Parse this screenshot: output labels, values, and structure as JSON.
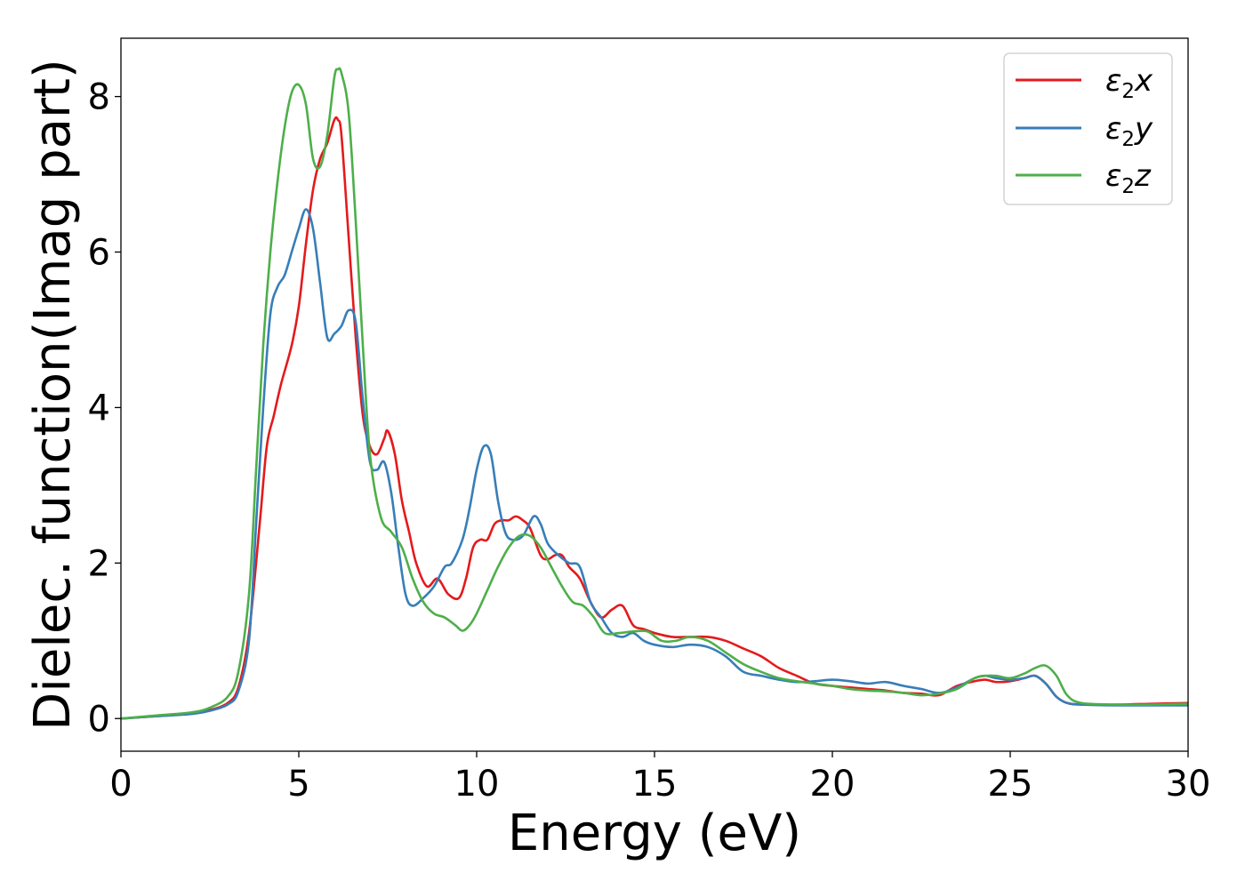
{
  "chart_data": {
    "type": "line",
    "title": "",
    "xlabel": "Energy (eV)",
    "ylabel": "Dielec. function(Imag part)",
    "xlim": [
      0,
      30
    ],
    "ylim": [
      -0.42,
      8.75
    ],
    "xticks": [
      0,
      5,
      10,
      15,
      20,
      25,
      30
    ],
    "yticks": [
      0,
      2,
      4,
      6,
      8
    ],
    "grid": false,
    "legend_position": "top-right",
    "series": [
      {
        "name": "ε₂x",
        "legend_main": "ε",
        "legend_sub": "2",
        "legend_tail": "x",
        "color": "#e41a1c",
        "x": [
          0,
          1,
          2,
          2.5,
          3,
          3.3,
          3.6,
          3.9,
          4.1,
          4.3,
          4.5,
          4.8,
          5.0,
          5.2,
          5.4,
          5.6,
          5.8,
          6.0,
          6.1,
          6.2,
          6.4,
          6.6,
          6.8,
          7.0,
          7.2,
          7.4,
          7.5,
          7.7,
          7.9,
          8.1,
          8.3,
          8.6,
          8.9,
          9.2,
          9.5,
          9.7,
          9.9,
          10.1,
          10.3,
          10.5,
          10.7,
          10.9,
          11.1,
          11.3,
          11.5,
          11.8,
          12.0,
          12.2,
          12.4,
          12.6,
          12.9,
          13.2,
          13.5,
          13.8,
          14.1,
          14.4,
          14.7,
          15.0,
          15.5,
          16.0,
          16.5,
          17.0,
          17.5,
          18.0,
          18.5,
          19.0,
          19.5,
          20.0,
          20.5,
          21.0,
          21.5,
          22.0,
          22.5,
          23.0,
          23.5,
          24.0,
          24.3,
          24.6,
          25.0,
          25.4,
          25.7,
          26.0,
          26.3,
          26.6,
          27.0,
          28.0,
          29.0,
          30.0
        ],
        "y": [
          0.0,
          0.03,
          0.07,
          0.11,
          0.2,
          0.4,
          1.1,
          2.5,
          3.5,
          3.9,
          4.3,
          4.8,
          5.3,
          6.1,
          6.8,
          7.2,
          7.4,
          7.7,
          7.7,
          7.5,
          6.2,
          4.9,
          3.9,
          3.5,
          3.4,
          3.6,
          3.7,
          3.4,
          2.8,
          2.4,
          2.0,
          1.7,
          1.8,
          1.6,
          1.55,
          1.8,
          2.2,
          2.3,
          2.3,
          2.5,
          2.55,
          2.55,
          2.6,
          2.55,
          2.45,
          2.1,
          2.05,
          2.1,
          2.1,
          1.95,
          1.8,
          1.5,
          1.3,
          1.4,
          1.45,
          1.2,
          1.15,
          1.1,
          1.05,
          1.05,
          1.05,
          1.0,
          0.9,
          0.8,
          0.65,
          0.55,
          0.45,
          0.42,
          0.4,
          0.38,
          0.36,
          0.33,
          0.32,
          0.3,
          0.42,
          0.48,
          0.5,
          0.47,
          0.48,
          0.52,
          0.55,
          0.45,
          0.28,
          0.2,
          0.18,
          0.18,
          0.19,
          0.2
        ]
      },
      {
        "name": "ε₂y",
        "legend_main": "ε",
        "legend_sub": "2",
        "legend_tail": "y",
        "color": "#377eb8",
        "x": [
          0,
          1,
          2,
          2.5,
          3,
          3.3,
          3.6,
          3.8,
          4.0,
          4.2,
          4.4,
          4.6,
          4.8,
          5.0,
          5.2,
          5.4,
          5.6,
          5.8,
          6.0,
          6.2,
          6.4,
          6.6,
          6.8,
          7.0,
          7.2,
          7.4,
          7.6,
          7.8,
          8.0,
          8.2,
          8.5,
          8.8,
          9.1,
          9.3,
          9.6,
          9.8,
          10.0,
          10.2,
          10.4,
          10.6,
          10.8,
          11.0,
          11.3,
          11.6,
          11.8,
          12.0,
          12.3,
          12.6,
          12.9,
          13.2,
          13.5,
          13.8,
          14.1,
          14.4,
          14.7,
          15.0,
          15.5,
          16.0,
          16.5,
          17.0,
          17.5,
          18.0,
          18.5,
          19.0,
          19.5,
          20.0,
          20.5,
          21.0,
          21.5,
          22.0,
          22.5,
          23.0,
          23.5,
          24.0,
          24.3,
          24.6,
          25.0,
          25.4,
          25.7,
          26.0,
          26.3,
          26.6,
          27.0,
          28.0,
          29.0,
          30.0
        ],
        "y": [
          0.0,
          0.03,
          0.06,
          0.1,
          0.18,
          0.35,
          1.0,
          2.5,
          4.0,
          5.2,
          5.55,
          5.7,
          6.0,
          6.3,
          6.55,
          6.3,
          5.6,
          4.9,
          4.95,
          5.05,
          5.25,
          5.1,
          4.1,
          3.3,
          3.2,
          3.3,
          2.9,
          2.2,
          1.6,
          1.45,
          1.55,
          1.7,
          1.95,
          2.0,
          2.3,
          2.7,
          3.2,
          3.5,
          3.4,
          2.8,
          2.4,
          2.3,
          2.35,
          2.6,
          2.5,
          2.25,
          2.1,
          2.0,
          1.95,
          1.5,
          1.3,
          1.1,
          1.05,
          1.1,
          1.0,
          0.95,
          0.92,
          0.95,
          0.92,
          0.8,
          0.6,
          0.55,
          0.5,
          0.47,
          0.48,
          0.5,
          0.48,
          0.45,
          0.47,
          0.42,
          0.38,
          0.33,
          0.4,
          0.52,
          0.55,
          0.52,
          0.5,
          0.52,
          0.55,
          0.45,
          0.28,
          0.2,
          0.18,
          0.17,
          0.17,
          0.17
        ]
      },
      {
        "name": "ε₂z",
        "legend_main": "ε",
        "legend_sub": "2",
        "legend_tail": "z",
        "color": "#4daf4a",
        "x": [
          0,
          1,
          2,
          2.5,
          3,
          3.3,
          3.6,
          3.8,
          4.0,
          4.2,
          4.4,
          4.6,
          4.8,
          5.0,
          5.2,
          5.4,
          5.6,
          5.8,
          6.0,
          6.1,
          6.2,
          6.4,
          6.6,
          6.8,
          7.0,
          7.3,
          7.6,
          7.9,
          8.2,
          8.5,
          8.8,
          9.1,
          9.4,
          9.6,
          9.8,
          10.0,
          10.3,
          10.6,
          10.9,
          11.2,
          11.5,
          11.8,
          12.1,
          12.4,
          12.7,
          13.0,
          13.3,
          13.6,
          14.0,
          14.4,
          14.8,
          15.2,
          15.6,
          16.0,
          16.5,
          17.0,
          17.5,
          18.0,
          18.5,
          19.0,
          19.5,
          20.0,
          20.5,
          21.0,
          21.5,
          22.0,
          22.5,
          23.0,
          23.5,
          24.0,
          24.3,
          24.6,
          25.0,
          25.4,
          25.7,
          26.0,
          26.3,
          26.6,
          27.0,
          28.0,
          29.0,
          30.0
        ],
        "y": [
          0.0,
          0.04,
          0.08,
          0.14,
          0.28,
          0.6,
          1.6,
          3.2,
          4.8,
          6.0,
          6.9,
          7.6,
          8.05,
          8.15,
          7.9,
          7.2,
          7.1,
          7.5,
          8.25,
          8.35,
          8.3,
          7.8,
          6.4,
          4.8,
          3.4,
          2.6,
          2.4,
          2.2,
          1.8,
          1.5,
          1.35,
          1.3,
          1.2,
          1.13,
          1.2,
          1.35,
          1.65,
          1.95,
          2.2,
          2.35,
          2.35,
          2.2,
          1.95,
          1.7,
          1.5,
          1.45,
          1.3,
          1.1,
          1.1,
          1.12,
          1.12,
          1.0,
          1.0,
          1.05,
          1.0,
          0.85,
          0.7,
          0.6,
          0.52,
          0.48,
          0.45,
          0.42,
          0.38,
          0.36,
          0.35,
          0.33,
          0.3,
          0.32,
          0.38,
          0.52,
          0.55,
          0.55,
          0.52,
          0.58,
          0.65,
          0.68,
          0.55,
          0.3,
          0.2,
          0.18,
          0.18,
          0.19
        ]
      }
    ]
  }
}
